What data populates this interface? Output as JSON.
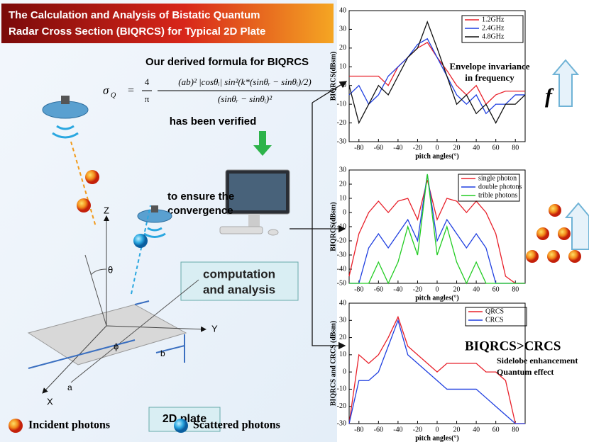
{
  "header": {
    "title_lines": [
      "The Calculation and Analysis of Bistatic Quantum",
      "Radar Cross Section (BIQRCS) for Typical 2D Plate"
    ]
  },
  "formula": {
    "heading": "Our derived formula for BIQRCS",
    "lhs": "σ",
    "lhs_subscript": "Q",
    "equals": "=",
    "coefficient_numerator": "4",
    "coefficient_denominator": "π",
    "numerator": "(ab)² |cosθᵢ| sin²(k*(sinθᵣ − sinθᵢ)/2)",
    "denominator": "(sinθᵣ − sinθᵢ)²",
    "status": "has been verified"
  },
  "convergence": [
    "to ensure the",
    "convergence"
  ],
  "computation_box": [
    "computation",
    "and analysis"
  ],
  "diagram": {
    "axis_z": "Z",
    "axis_y": "Y",
    "axis_x": "X",
    "theta": "θ",
    "phi": "ϕ",
    "side_a": "a",
    "side_b": "b",
    "plate_label": "2D plate"
  },
  "legend": {
    "incident": "Incident photons",
    "scattered": "Scattered photons"
  },
  "side_labels": {
    "frequency_symbol": "f"
  },
  "chart_data": [
    {
      "type": "line",
      "x_label": "pitch angles(°)",
      "y_label": "BIQRCS(dBsm)",
      "annotations": [
        "Envelope invariance",
        "in frequency"
      ],
      "x": [
        -90,
        -80,
        -70,
        -60,
        -50,
        -40,
        -30,
        -20,
        -10,
        0,
        10,
        20,
        30,
        40,
        50,
        60,
        70,
        80,
        90
      ],
      "series": [
        {
          "name": "1.2GHz",
          "color": "#e8202a",
          "values": [
            5,
            5,
            5,
            5,
            0,
            10,
            15,
            20,
            23,
            15,
            8,
            0,
            -5,
            0,
            -10,
            -5,
            -3,
            -3,
            -3
          ]
        },
        {
          "name": "2.4GHz",
          "color": "#1f3fe0",
          "values": [
            -5,
            0,
            -10,
            -5,
            5,
            10,
            15,
            22,
            25,
            15,
            5,
            -5,
            -10,
            -5,
            -15,
            -10,
            -10,
            -5,
            -5
          ]
        },
        {
          "name": "4.8GHz",
          "color": "#111111",
          "values": [
            0,
            -20,
            -10,
            0,
            -5,
            5,
            15,
            20,
            34,
            20,
            5,
            -10,
            -5,
            -15,
            -10,
            -20,
            -10,
            -10,
            -5
          ]
        }
      ],
      "xlim": [
        -90,
        90
      ],
      "xticks": [
        -80,
        -60,
        -40,
        -20,
        0,
        20,
        40,
        60,
        80
      ],
      "ylim": [
        -30,
        40
      ],
      "yticks": [
        -30,
        -20,
        -10,
        0,
        10,
        20,
        30,
        40
      ]
    },
    {
      "type": "line",
      "x_label": "pitch angles(°)",
      "y_label": "BIQRCS(dBsm)",
      "x": [
        -90,
        -80,
        -70,
        -60,
        -50,
        -40,
        -30,
        -20,
        -10,
        0,
        10,
        20,
        30,
        40,
        50,
        60,
        70,
        80,
        90
      ],
      "series": [
        {
          "name": "single photon",
          "color": "#e8202a",
          "values": [
            -45,
            -15,
            0,
            8,
            0,
            8,
            10,
            -5,
            23,
            -5,
            10,
            8,
            0,
            8,
            0,
            -15,
            -45,
            -50,
            -50
          ]
        },
        {
          "name": "double photons",
          "color": "#1f3fe0",
          "values": [
            -50,
            -50,
            -25,
            -15,
            -25,
            -15,
            -5,
            -20,
            27,
            -20,
            -5,
            -15,
            -25,
            -15,
            -25,
            -50,
            -50,
            -50,
            -50
          ]
        },
        {
          "name": "trible photons",
          "color": "#22cc22",
          "values": [
            -50,
            -50,
            -50,
            -35,
            -50,
            -35,
            -10,
            -30,
            27,
            -30,
            -10,
            -35,
            -50,
            -35,
            -50,
            -50,
            -50,
            -50,
            -50
          ]
        }
      ],
      "xlim": [
        -90,
        90
      ],
      "xticks": [
        -80,
        -60,
        -40,
        -20,
        0,
        20,
        40,
        60,
        80
      ],
      "ylim": [
        -50,
        30
      ],
      "yticks": [
        -50,
        -40,
        -30,
        -20,
        -10,
        0,
        10,
        20,
        30
      ]
    },
    {
      "type": "line",
      "x_label": "pitch angles(°)",
      "y_label": "BIQRCS and CRCS (dBsm)",
      "annotations": [
        "BIQRCS>CRCS",
        "Sidelobe enhancement",
        "Quantum effect"
      ],
      "x": [
        -90,
        -80,
        -70,
        -60,
        -50,
        -40,
        -30,
        -20,
        -10,
        0,
        10,
        20,
        30,
        40,
        50,
        60,
        70,
        80,
        90
      ],
      "series": [
        {
          "name": "QRCS",
          "color": "#e8202a",
          "values": [
            -30,
            10,
            5,
            10,
            20,
            32,
            15,
            10,
            5,
            0,
            5,
            5,
            5,
            5,
            0,
            0,
            -5,
            -30,
            -30
          ]
        },
        {
          "name": "CRCS",
          "color": "#1f3fe0",
          "values": [
            -30,
            -5,
            -5,
            0,
            15,
            30,
            10,
            5,
            0,
            -5,
            -10,
            -10,
            -10,
            -10,
            -15,
            -20,
            -25,
            -30,
            -30
          ]
        }
      ],
      "xlim": [
        -90,
        90
      ],
      "xticks": [
        -80,
        -60,
        -40,
        -20,
        0,
        20,
        40,
        60,
        80
      ],
      "ylim": [
        -30,
        40
      ],
      "yticks": [
        -30,
        -20,
        -10,
        0,
        10,
        20,
        30,
        40
      ]
    }
  ]
}
